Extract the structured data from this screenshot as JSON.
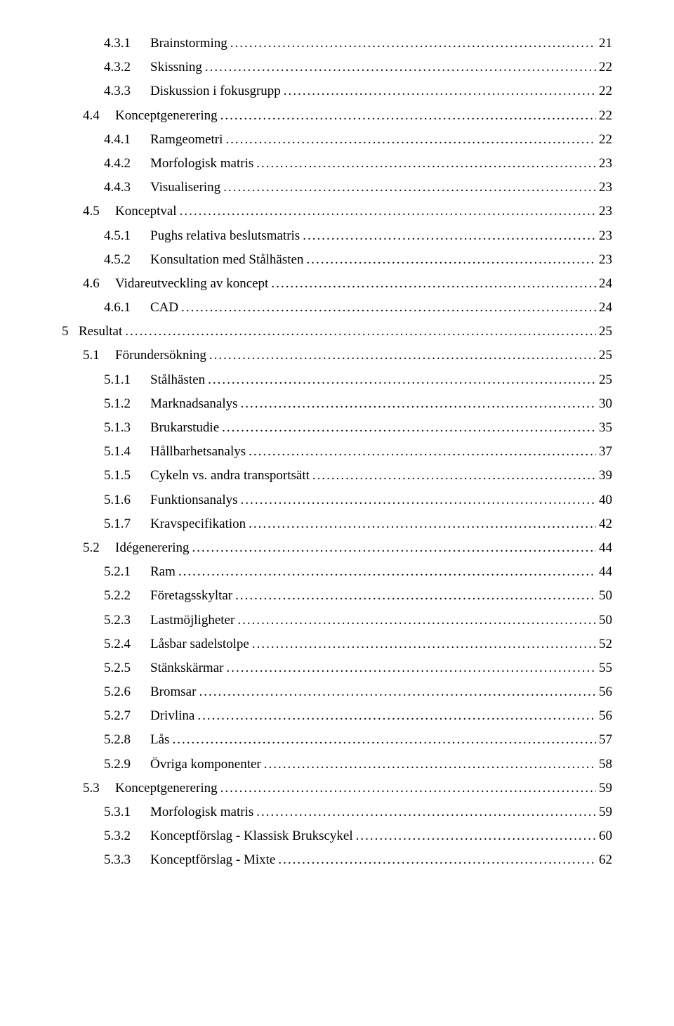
{
  "font_family": "Times New Roman",
  "text_color": "#000000",
  "background_color": "#ffffff",
  "font_size_pt": 14,
  "entries": [
    {
      "indent": 2,
      "num": "4.3.1",
      "title": "Brainstorming",
      "page": "21"
    },
    {
      "indent": 2,
      "num": "4.3.2",
      "title": "Skissning",
      "page": "22"
    },
    {
      "indent": 2,
      "num": "4.3.3",
      "title": "Diskussion i fokusgrupp",
      "page": "22"
    },
    {
      "indent": 1,
      "num": "4.4",
      "title": "Konceptgenerering",
      "page": "22"
    },
    {
      "indent": 2,
      "num": "4.4.1",
      "title": "Ramgeometri",
      "page": "22"
    },
    {
      "indent": 2,
      "num": "4.4.2",
      "title": "Morfologisk matris",
      "page": "23"
    },
    {
      "indent": 2,
      "num": "4.4.3",
      "title": "Visualisering",
      "page": "23"
    },
    {
      "indent": 1,
      "num": "4.5",
      "title": "Konceptval",
      "page": "23"
    },
    {
      "indent": 2,
      "num": "4.5.1",
      "title": "Pughs relativa beslutsmatris",
      "page": "23"
    },
    {
      "indent": 2,
      "num": "4.5.2",
      "title": "Konsultation med Stålhästen",
      "page": "23"
    },
    {
      "indent": 1,
      "num": "4.6",
      "title": "Vidareutveckling av koncept",
      "page": "24"
    },
    {
      "indent": 2,
      "num": "4.6.1",
      "title": "CAD",
      "page": "24"
    },
    {
      "indent": 0,
      "num": "5",
      "title": "Resultat",
      "page": "25"
    },
    {
      "indent": 1,
      "num": "5.1",
      "title": "Förundersökning",
      "page": "25"
    },
    {
      "indent": 2,
      "num": "5.1.1",
      "title": "Stålhästen",
      "page": "25"
    },
    {
      "indent": 2,
      "num": "5.1.2",
      "title": "Marknadsanalys",
      "page": "30"
    },
    {
      "indent": 2,
      "num": "5.1.3",
      "title": "Brukarstudie",
      "page": "35"
    },
    {
      "indent": 2,
      "num": "5.1.4",
      "title": "Hållbarhetsanalys",
      "page": "37"
    },
    {
      "indent": 2,
      "num": "5.1.5",
      "title": "Cykeln vs. andra transportsätt",
      "page": "39"
    },
    {
      "indent": 2,
      "num": "5.1.6",
      "title": "Funktionsanalys",
      "page": "40"
    },
    {
      "indent": 2,
      "num": "5.1.7",
      "title": "Kravspecifikation",
      "page": "42"
    },
    {
      "indent": 1,
      "num": "5.2",
      "title": "Idégenerering",
      "page": "44"
    },
    {
      "indent": 2,
      "num": "5.2.1",
      "title": "Ram",
      "page": "44"
    },
    {
      "indent": 2,
      "num": "5.2.2",
      "title": "Företagsskyltar",
      "page": "50"
    },
    {
      "indent": 2,
      "num": "5.2.3",
      "title": "Lastmöjligheter",
      "page": "50"
    },
    {
      "indent": 2,
      "num": "5.2.4",
      "title": "Låsbar sadelstolpe",
      "page": "52"
    },
    {
      "indent": 2,
      "num": "5.2.5",
      "title": "Stänkskärmar",
      "page": "55"
    },
    {
      "indent": 2,
      "num": "5.2.6",
      "title": "Bromsar",
      "page": "56"
    },
    {
      "indent": 2,
      "num": "5.2.7",
      "title": "Drivlina",
      "page": "56"
    },
    {
      "indent": 2,
      "num": "5.2.8",
      "title": "Lås",
      "page": "57"
    },
    {
      "indent": 2,
      "num": "5.2.9",
      "title": "Övriga komponenter",
      "page": "58"
    },
    {
      "indent": 1,
      "num": "5.3",
      "title": "Konceptgenerering",
      "page": "59"
    },
    {
      "indent": 2,
      "num": "5.3.1",
      "title": "Morfologisk matris",
      "page": "59"
    },
    {
      "indent": 2,
      "num": "5.3.2",
      "title": "Konceptförslag - Klassisk Brukscykel",
      "page": "60"
    },
    {
      "indent": 2,
      "num": "5.3.3",
      "title": "Konceptförslag - Mixte",
      "page": "62"
    }
  ]
}
